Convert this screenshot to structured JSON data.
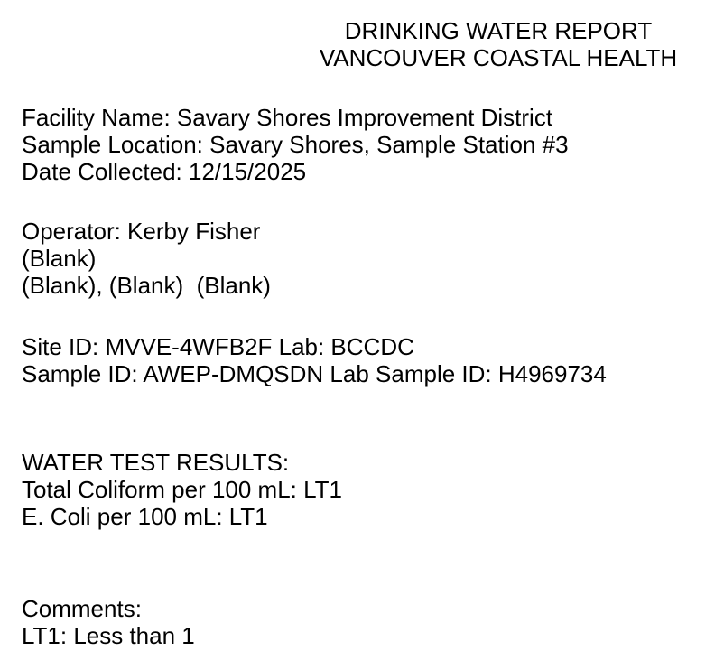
{
  "report_header": {
    "title_line1": "DRINKING WATER REPORT",
    "title_line2": "VANCOUVER COASTAL HEALTH"
  },
  "facility_info": {
    "facility_name_line": "Facility Name: Savary Shores Improvement District",
    "sample_location_line": "Sample Location: Savary Shores, Sample Station #3",
    "date_collected_line": "Date Collected: 12/15/2025"
  },
  "operator_info": {
    "operator_line": "Operator: Kerby Fisher",
    "blank_line_1": "(Blank)",
    "blank_line_2": "(Blank), (Blank)  (Blank)"
  },
  "sample_ids": {
    "site_id_lab_line": "Site ID: MVVE-4WFB2F Lab: BCCDC",
    "sample_id_lab_line": "Sample ID: AWEP-DMQSDN Lab Sample ID: H4969734"
  },
  "test_results": {
    "heading": "WATER TEST RESULTS:",
    "total_coliform_line": "Total Coliform per 100 mL: LT1",
    "e_coli_line": "E. Coli per 100 mL: LT1"
  },
  "comments": {
    "heading": "Comments:",
    "lt1_note_line": "LT1: Less than 1"
  },
  "colors": {
    "text": "#000000",
    "background": "#ffffff"
  }
}
